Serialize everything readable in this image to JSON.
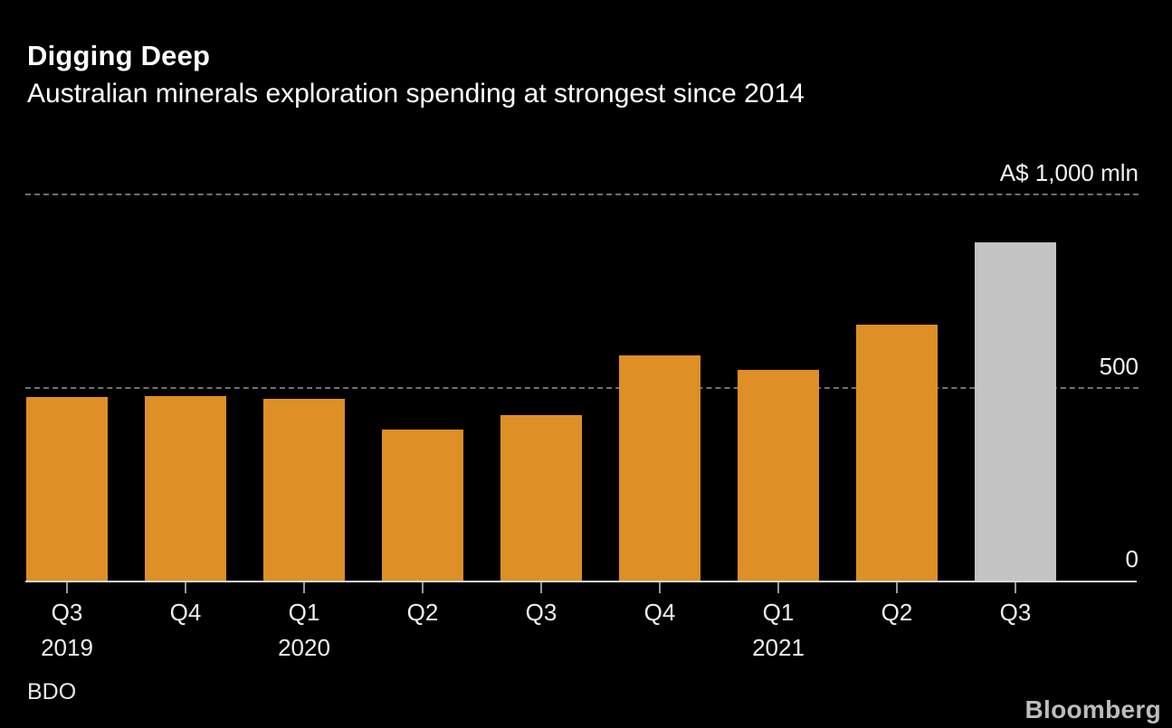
{
  "header": {
    "title": "Digging Deep",
    "subtitle": "Australian minerals exploration spending at strongest since 2014"
  },
  "chart_data": {
    "type": "bar",
    "title": "Digging Deep",
    "subtitle": "Australian minerals exploration spending at strongest since 2014",
    "unit_label": "A$ 1,000 mln",
    "categories": [
      "Q3 2019",
      "Q4 2019",
      "Q1 2020",
      "Q2 2020",
      "Q3 2020",
      "Q4 2020",
      "Q1 2021",
      "Q2 2021",
      "Q3 2021"
    ],
    "x_tick_labels": [
      {
        "quarter": "Q3",
        "year": "2019"
      },
      {
        "quarter": "Q4",
        "year": ""
      },
      {
        "quarter": "Q1",
        "year": "2020"
      },
      {
        "quarter": "Q2",
        "year": ""
      },
      {
        "quarter": "Q3",
        "year": ""
      },
      {
        "quarter": "Q4",
        "year": ""
      },
      {
        "quarter": "Q1",
        "year": "2021"
      },
      {
        "quarter": "Q2",
        "year": ""
      },
      {
        "quarter": "Q3",
        "year": ""
      }
    ],
    "values": [
      475,
      478,
      470,
      390,
      428,
      583,
      546,
      663,
      877
    ],
    "ylim": [
      0,
      1000
    ],
    "y_ticks": [
      {
        "value": 1000,
        "label": "A$ 1,000 mln"
      },
      {
        "value": 500,
        "label": "500"
      },
      {
        "value": 0,
        "label": "0"
      }
    ],
    "grid": "horizontal-dashed",
    "legend": "none",
    "highlight_index": 8,
    "colors": {
      "bar": "#DE8F26",
      "highlight_bar": "#C4C4C4",
      "gridline": "#707070",
      "axis_line": "#D9D9D9",
      "tick": "#9A9A9A",
      "text": "#FFFFFF"
    }
  },
  "footer": {
    "source": "BDO",
    "brand": "Bloomberg"
  }
}
